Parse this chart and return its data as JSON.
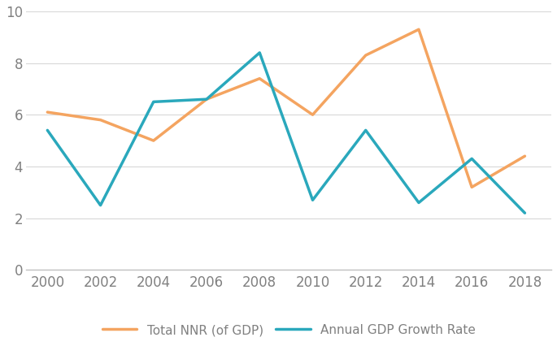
{
  "years": [
    2000,
    2002,
    2004,
    2006,
    2008,
    2010,
    2012,
    2014,
    2016,
    2018
  ],
  "nnr_values": [
    6.1,
    5.8,
    5.0,
    6.6,
    7.4,
    6.0,
    8.3,
    9.3,
    3.2,
    4.4
  ],
  "gdp_values": [
    5.4,
    2.5,
    6.5,
    6.6,
    8.4,
    2.7,
    5.4,
    2.6,
    4.3,
    2.2
  ],
  "nnr_color": "#f4a460",
  "gdp_color": "#2aa8bc",
  "nnr_label": "Total NNR (of GDP)",
  "gdp_label": "Annual GDP Growth Rate",
  "ylim": [
    0,
    10
  ],
  "yticks": [
    0,
    2,
    4,
    6,
    8,
    10
  ],
  "xticks": [
    2000,
    2002,
    2004,
    2006,
    2008,
    2010,
    2012,
    2014,
    2016,
    2018
  ],
  "background_color": "#ffffff",
  "linewidth": 2.5,
  "legend_fontsize": 11,
  "tick_fontsize": 12,
  "tick_color": "#808080",
  "grid_color": "#d8d8d8",
  "spine_color": "#c0c0c0"
}
